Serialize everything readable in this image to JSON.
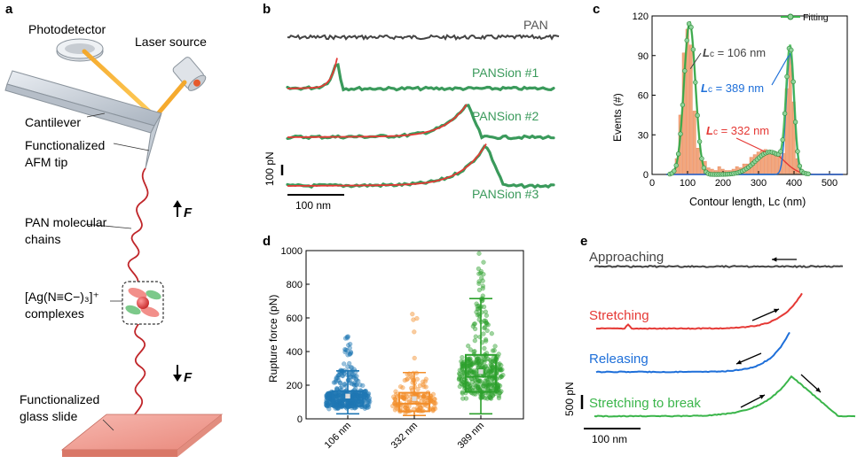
{
  "panels": {
    "a": {
      "letter": "a",
      "photodetector": "Photodetector",
      "laser": "Laser source",
      "cantilever": "Cantilever",
      "tip_line1": "Functionalized",
      "tip_line2": "AFM tip",
      "chains_line1": "PAN molecular",
      "chains_line2": "chains",
      "complex_line1": "[Ag(N≡C−)₃]⁺",
      "complex_line2": "complexes",
      "slide_line1": "Functionalized",
      "slide_line2": "glass slide",
      "force_label": "F"
    },
    "b": {
      "letter": "b",
      "traces": [
        "PAN",
        "PANSion #1",
        "PANSion #2",
        "PANSion #3"
      ],
      "scale_force": "100 pN",
      "scale_length": "100 nm",
      "colors": {
        "data": "#3a9a5b",
        "fit": "#e53935",
        "pan": "#444444"
      }
    },
    "e": {
      "letter": "e",
      "traces": [
        "Approaching",
        "Stretching",
        "Releasing",
        "Stretching to break"
      ],
      "colors": [
        "#444444",
        "#e53935",
        "#1e6fd9",
        "#3ab54a"
      ],
      "scale_force": "500 pN",
      "scale_length": "100 nm"
    }
  },
  "chart_data": [
    {
      "id": "c",
      "letter": "c",
      "type": "bar",
      "title": "",
      "xlabel": "Contour length, Lc (nm)",
      "ylabel": "Events (#)",
      "xlim": [
        0,
        550
      ],
      "ylim": [
        0,
        120
      ],
      "xticks": [
        0,
        100,
        200,
        300,
        400,
        500
      ],
      "yticks": [
        0,
        30,
        60,
        90,
        120
      ],
      "bin_width": 10,
      "x": [
        60,
        70,
        80,
        90,
        100,
        110,
        120,
        130,
        140,
        150,
        160,
        170,
        180,
        190,
        200,
        210,
        220,
        230,
        240,
        250,
        260,
        270,
        280,
        290,
        300,
        310,
        320,
        330,
        340,
        350,
        360,
        370,
        380,
        390,
        400,
        410,
        420,
        430
      ],
      "values": [
        3,
        12,
        45,
        92,
        110,
        98,
        48,
        20,
        12,
        10,
        5,
        4,
        3,
        6,
        4,
        3,
        3,
        4,
        6,
        5,
        8,
        8,
        13,
        15,
        17,
        18,
        19,
        16,
        15,
        17,
        14,
        16,
        65,
        90,
        55,
        12,
        4,
        2
      ],
      "legend": "Fitting",
      "legend_position": "top-right",
      "annotations": [
        {
          "prefix": "L",
          "sub": "c",
          "text": " = 106 nm",
          "color": "#444444"
        },
        {
          "prefix": "L",
          "sub": "c",
          "text": " = 389 nm",
          "color": "#1e6fd9"
        },
        {
          "prefix": "L",
          "sub": "c",
          "text": " = 332 nm",
          "color": "#e53935"
        }
      ],
      "gaussian_peaks": [
        {
          "center": 106,
          "amplitude": 115,
          "sigma": 16,
          "color": "#444444"
        },
        {
          "center": 332,
          "amplitude": 17,
          "sigma": 40,
          "color": "#e53935"
        },
        {
          "center": 389,
          "amplitude": 92,
          "sigma": 11,
          "color": "#1e6fd9"
        }
      ],
      "colors": {
        "bars": "#f3a77e",
        "fit": "#3ab54a"
      }
    },
    {
      "id": "d",
      "letter": "d",
      "type": "box",
      "title": "",
      "ylabel": "Rupture force (pN)",
      "ylim": [
        0,
        1000
      ],
      "yticks": [
        0,
        200,
        400,
        600,
        800,
        1000
      ],
      "categories": [
        "106 nm",
        "332 nm",
        "389 nm"
      ],
      "colors": [
        "#1f77b4",
        "#f28e2b",
        "#2ca02c"
      ],
      "boxes": [
        {
          "whisker_low": 30,
          "q1": 75,
          "median": 110,
          "mean": 135,
          "q3": 165,
          "whisker_high": 285,
          "max": 520,
          "n": 420
        },
        {
          "whisker_low": 20,
          "q1": 45,
          "median": 90,
          "mean": 120,
          "q3": 155,
          "whisker_high": 275,
          "max": 640,
          "n": 160
        },
        {
          "whisker_low": 30,
          "q1": 160,
          "median": 250,
          "mean": 280,
          "q3": 380,
          "whisker_high": 715,
          "max": 1000,
          "n": 380
        }
      ]
    }
  ]
}
